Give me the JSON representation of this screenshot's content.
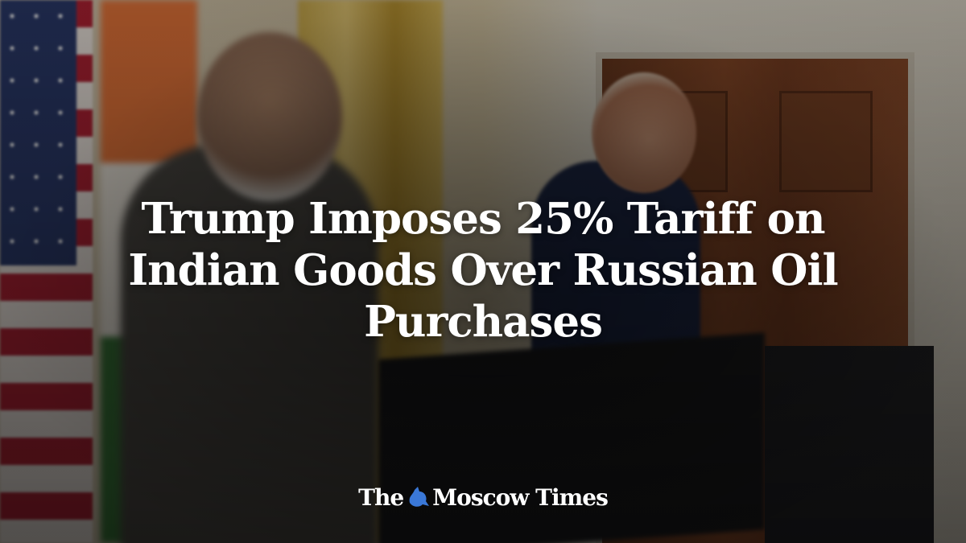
{
  "headline": "Trump Imposes 25% Tariff on Indian Goods Over Russian Oil Purchases",
  "logo": {
    "left": "The",
    "right": "Moscow Times",
    "emblem_icon": "st-george-emblem-icon",
    "emblem_color": "#3a78d8"
  }
}
